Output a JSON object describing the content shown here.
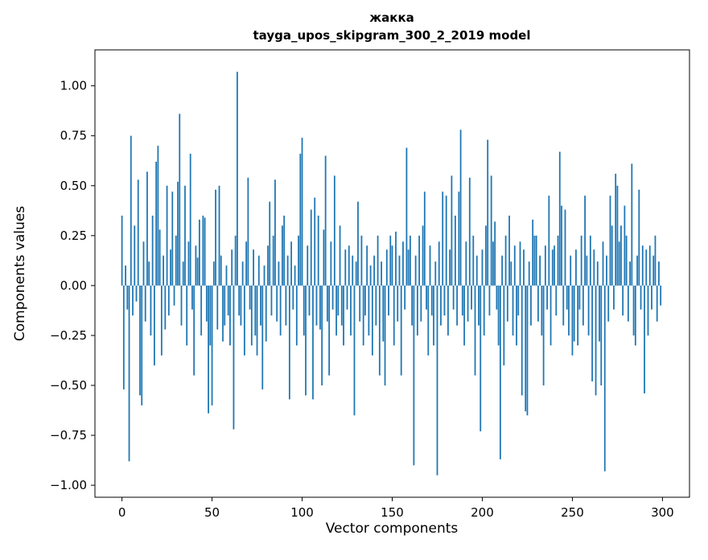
{
  "chart_data": {
    "type": "bar",
    "title": "жакка",
    "subtitle": "tayga_upos_skipgram_300_2_2019 model",
    "xlabel": "Vector components",
    "ylabel": "Components values",
    "xlim": [
      -15,
      315
    ],
    "ylim": [
      -1.06,
      1.18
    ],
    "xticks": [
      0,
      50,
      100,
      150,
      200,
      250,
      300
    ],
    "yticks": [
      -1.0,
      -0.75,
      -0.5,
      -0.25,
      0.0,
      0.25,
      0.5,
      0.75,
      1.0
    ],
    "grid": false,
    "legend": "none",
    "bar_color": "#1f77b4",
    "n_components": 300,
    "values": [
      0.35,
      -0.52,
      0.1,
      -0.12,
      -0.88,
      0.75,
      -0.15,
      0.3,
      -0.08,
      0.53,
      -0.55,
      -0.6,
      0.22,
      -0.18,
      0.57,
      0.12,
      -0.25,
      0.35,
      -0.4,
      0.62,
      0.7,
      0.28,
      -0.35,
      0.15,
      -0.22,
      0.5,
      -0.15,
      0.18,
      0.47,
      -0.1,
      0.25,
      0.52,
      0.86,
      -0.2,
      0.12,
      0.5,
      -0.3,
      0.22,
      0.66,
      -0.12,
      -0.45,
      0.2,
      0.14,
      0.33,
      -0.25,
      0.35,
      0.34,
      -0.18,
      -0.64,
      -0.3,
      -0.6,
      0.12,
      0.48,
      -0.22,
      0.5,
      0.15,
      -0.28,
      -0.2,
      0.1,
      -0.15,
      -0.3,
      0.18,
      -0.72,
      0.25,
      1.07,
      -0.15,
      -0.2,
      0.12,
      -0.35,
      0.22,
      0.54,
      -0.12,
      -0.3,
      0.18,
      -0.25,
      -0.35,
      0.15,
      -0.2,
      -0.52,
      0.1,
      -0.28,
      0.2,
      0.42,
      -0.15,
      0.25,
      0.53,
      -0.18,
      0.12,
      -0.25,
      0.3,
      0.35,
      -0.2,
      0.15,
      -0.57,
      0.22,
      -0.12,
      0.1,
      -0.3,
      0.25,
      0.66,
      0.74,
      -0.25,
      -0.55,
      0.2,
      -0.15,
      0.38,
      -0.57,
      0.44,
      -0.2,
      0.35,
      -0.22,
      -0.5,
      0.28,
      0.65,
      -0.18,
      -0.45,
      0.22,
      -0.12,
      0.55,
      -0.25,
      -0.15,
      0.3,
      -0.2,
      -0.3,
      0.18,
      -0.12,
      0.2,
      -0.25,
      0.15,
      -0.65,
      0.12,
      0.42,
      -0.18,
      0.25,
      -0.3,
      -0.15,
      0.2,
      -0.25,
      0.1,
      -0.35,
      0.15,
      -0.2,
      0.25,
      -0.45,
      0.12,
      -0.28,
      -0.5,
      0.18,
      -0.15,
      0.25,
      0.2,
      -0.3,
      0.27,
      -0.18,
      0.15,
      -0.45,
      0.22,
      -0.12,
      0.69,
      0.18,
      0.25,
      -0.2,
      -0.9,
      0.15,
      -0.25,
      0.25,
      -0.18,
      0.3,
      0.47,
      -0.12,
      -0.35,
      0.2,
      -0.15,
      -0.3,
      0.12,
      -0.95,
      0.22,
      -0.2,
      0.47,
      -0.15,
      0.45,
      -0.25,
      0.18,
      0.55,
      -0.12,
      0.35,
      -0.2,
      0.47,
      0.78,
      -0.15,
      -0.3,
      0.22,
      -0.18,
      0.54,
      -0.12,
      0.25,
      -0.45,
      0.15,
      -0.2,
      -0.73,
      0.18,
      -0.25,
      0.3,
      0.73,
      -0.15,
      0.55,
      0.22,
      0.32,
      -0.12,
      -0.3,
      -0.87,
      0.15,
      -0.4,
      0.25,
      -0.18,
      0.35,
      0.12,
      -0.25,
      0.2,
      -0.3,
      -0.15,
      0.22,
      -0.55,
      0.18,
      -0.63,
      -0.65,
      0.12,
      -0.2,
      0.33,
      0.25,
      0.25,
      -0.18,
      0.15,
      -0.25,
      -0.5,
      0.2,
      -0.12,
      0.45,
      -0.3,
      0.18,
      0.2,
      -0.15,
      0.25,
      0.67,
      0.4,
      -0.2,
      0.38,
      -0.12,
      -0.25,
      0.15,
      -0.35,
      -0.28,
      0.18,
      -0.3,
      -0.12,
      0.25,
      -0.2,
      0.45,
      0.15,
      -0.25,
      0.25,
      -0.48,
      0.18,
      -0.55,
      0.12,
      -0.28,
      -0.5,
      0.22,
      -0.93,
      0.15,
      -0.18,
      0.45,
      0.3,
      -0.12,
      0.56,
      0.5,
      0.22,
      0.3,
      -0.15,
      0.4,
      0.25,
      -0.18,
      0.12,
      0.61,
      -0.25,
      -0.3,
      0.15,
      0.48,
      -0.12,
      0.2,
      -0.54,
      0.18,
      -0.25,
      0.2,
      -0.12,
      0.15,
      0.25,
      -0.18,
      0.12,
      -0.1
    ]
  }
}
